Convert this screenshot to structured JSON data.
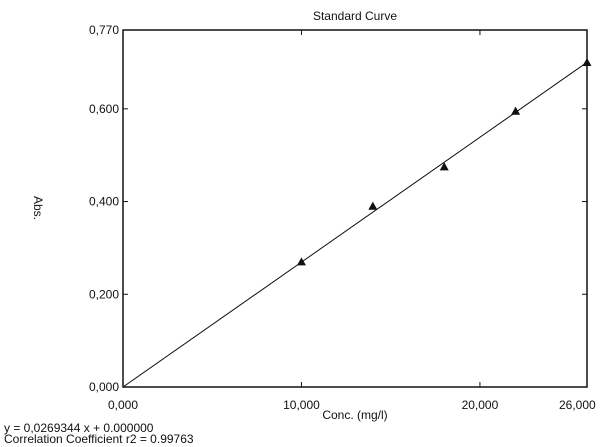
{
  "chart_data": {
    "type": "scatter",
    "title": "Standard Curve",
    "xlabel": "Conc. (mg/l)",
    "ylabel": "Abs.",
    "xlim": [
      0,
      26
    ],
    "ylim": [
      0,
      0.77
    ],
    "x_ticks": [
      {
        "value": 0,
        "label": "0,000"
      },
      {
        "value": 10,
        "label": "10,000"
      },
      {
        "value": 20,
        "label": "20,000"
      },
      {
        "value": 26,
        "label": "26,000"
      }
    ],
    "y_ticks": [
      {
        "value": 0,
        "label": "0,000"
      },
      {
        "value": 0.2,
        "label": "0,200"
      },
      {
        "value": 0.4,
        "label": "0,400"
      },
      {
        "value": 0.6,
        "label": "0,600"
      },
      {
        "value": 0.77,
        "label": "0,770"
      }
    ],
    "points": [
      {
        "x": 10,
        "y": 0.27
      },
      {
        "x": 14,
        "y": 0.39
      },
      {
        "x": 18,
        "y": 0.475
      },
      {
        "x": 22,
        "y": 0.595
      },
      {
        "x": 26,
        "y": 0.7
      }
    ],
    "fit": {
      "slope": 0.0269344,
      "intercept": 0.0
    },
    "grid": false,
    "marker": "triangle",
    "color": "#111111"
  },
  "footer": {
    "equation": "y = 0,0269344 x + 0.000000",
    "correlation": "Correlation Coefficient r2 = 0.99763"
  }
}
